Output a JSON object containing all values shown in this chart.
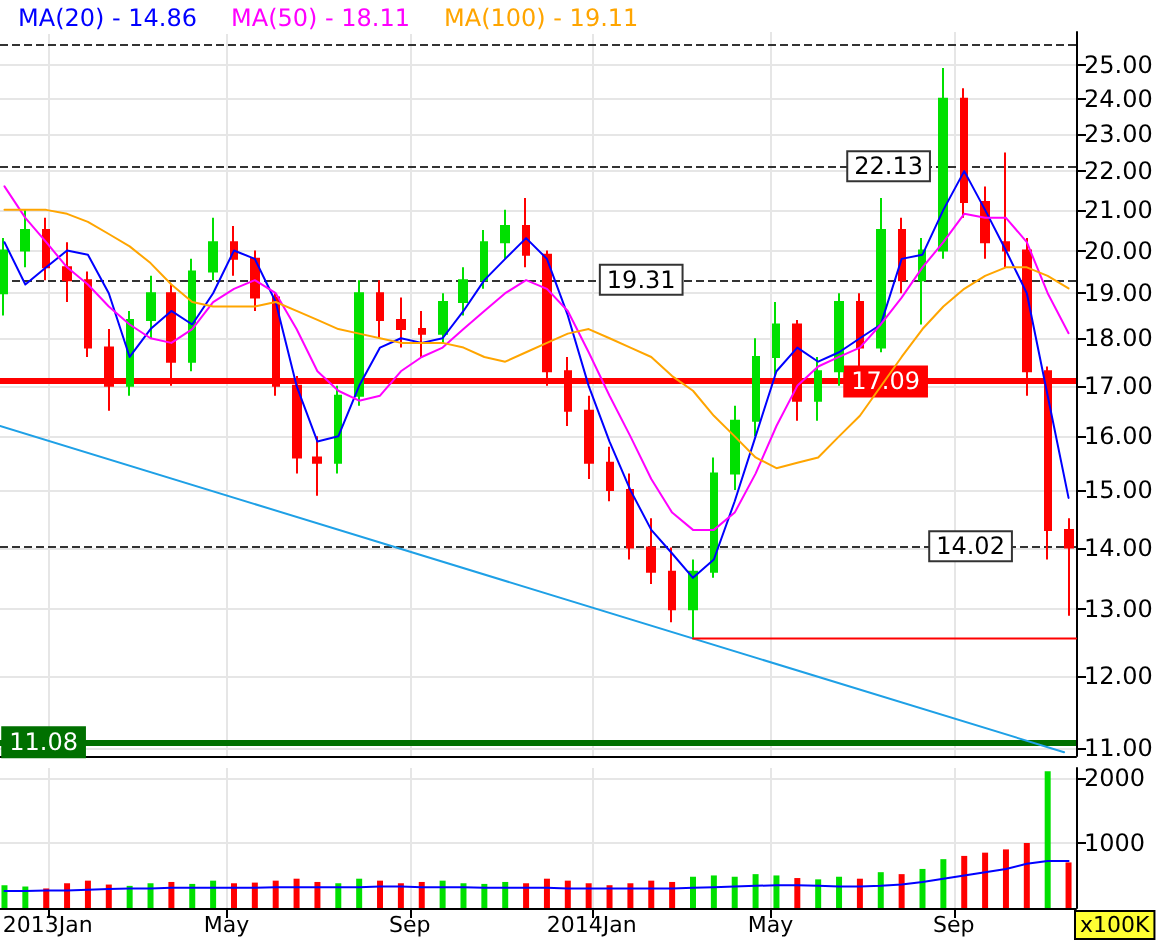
{
  "chart_data": [
    {
      "type": "candlestick",
      "log": true,
      "grid": true,
      "legend": "top left",
      "marker": "none",
      "tick_labels": "y",
      "x": [
        "2012-12-03",
        "2012-12-17",
        "2012-12-31",
        "2013-01-14",
        "2013-01-28",
        "2013-02-11",
        "2013-02-25",
        "2013-03-11",
        "2013-03-25",
        "2013-04-08",
        "2013-04-22",
        "2013-05-06",
        "2013-05-20",
        "2013-06-03",
        "2013-06-17",
        "2013-07-01",
        "2013-07-15",
        "2013-07-29",
        "2013-08-12",
        "2013-08-26",
        "2013-09-09",
        "2013-09-23",
        "2013-10-07",
        "2013-10-21",
        "2013-11-04",
        "2013-11-18",
        "2013-12-02",
        "2013-12-16",
        "2013-12-30",
        "2014-01-13",
        "2014-01-27",
        "2014-02-10",
        "2014-02-24",
        "2014-03-10",
        "2014-03-24",
        "2014-04-07",
        "2014-04-21",
        "2014-05-05",
        "2014-05-19",
        "2014-06-02",
        "2014-06-16",
        "2014-06-30",
        "2014-07-14",
        "2014-07-28",
        "2014-08-11",
        "2014-08-25",
        "2014-09-08",
        "2014-09-22",
        "2014-10-06",
        "2014-10-20",
        "2014-11-03",
        "2014-11-17"
      ],
      "ohlc": [
        [
          19.0,
          20.3,
          18.5,
          20.0
        ],
        [
          20.0,
          21.0,
          19.6,
          20.5
        ],
        [
          20.5,
          20.8,
          19.3,
          19.6
        ],
        [
          19.6,
          20.2,
          18.8,
          19.3
        ],
        [
          19.3,
          19.5,
          17.6,
          17.8
        ],
        [
          17.8,
          18.2,
          16.5,
          17.0
        ],
        [
          17.0,
          18.6,
          16.8,
          18.4
        ],
        [
          18.4,
          19.4,
          18.0,
          19.0
        ],
        [
          19.0,
          19.2,
          17.0,
          17.5
        ],
        [
          17.5,
          19.8,
          17.3,
          19.5
        ],
        [
          19.5,
          20.8,
          19.3,
          20.2
        ],
        [
          20.2,
          20.6,
          19.4,
          19.8
        ],
        [
          19.8,
          20.0,
          18.6,
          18.9
        ],
        [
          18.9,
          19.0,
          16.8,
          17.0
        ],
        [
          17.0,
          17.2,
          15.3,
          15.6
        ],
        [
          15.6,
          16.0,
          14.9,
          15.5
        ],
        [
          15.5,
          17.0,
          15.3,
          16.8
        ],
        [
          16.8,
          19.3,
          16.6,
          19.0
        ],
        [
          19.0,
          19.3,
          18.0,
          18.4
        ],
        [
          18.4,
          18.9,
          17.8,
          18.2
        ],
        [
          18.2,
          18.6,
          17.6,
          18.1
        ],
        [
          18.1,
          19.0,
          17.9,
          18.8
        ],
        [
          18.8,
          19.6,
          18.5,
          19.3
        ],
        [
          19.3,
          20.5,
          19.1,
          20.2
        ],
        [
          20.2,
          21.0,
          19.8,
          20.6
        ],
        [
          20.6,
          21.3,
          19.6,
          19.9
        ],
        [
          19.9,
          20.0,
          17.0,
          17.3
        ],
        [
          17.3,
          17.6,
          16.2,
          16.5
        ],
        [
          16.5,
          16.8,
          15.2,
          15.5
        ],
        [
          15.5,
          15.8,
          14.8,
          15.0
        ],
        [
          15.0,
          15.3,
          13.8,
          14.0
        ],
        [
          14.0,
          14.5,
          13.4,
          13.6
        ],
        [
          13.6,
          14.0,
          12.8,
          13.0
        ],
        [
          13.0,
          13.8,
          12.55,
          13.6
        ],
        [
          13.6,
          15.6,
          13.5,
          15.3
        ],
        [
          15.3,
          16.6,
          15.0,
          16.3
        ],
        [
          16.3,
          18.0,
          16.0,
          17.6
        ],
        [
          17.6,
          18.8,
          17.2,
          18.3
        ],
        [
          18.3,
          18.4,
          16.3,
          16.7
        ],
        [
          16.7,
          17.6,
          16.3,
          17.3
        ],
        [
          17.3,
          19.0,
          17.0,
          18.8
        ],
        [
          18.8,
          19.0,
          17.4,
          17.8
        ],
        [
          17.8,
          21.3,
          17.7,
          20.5
        ],
        [
          20.5,
          20.8,
          19.0,
          19.3
        ],
        [
          19.3,
          20.3,
          18.3,
          20.0
        ],
        [
          20.0,
          24.9,
          19.8,
          24.0
        ],
        [
          24.0,
          24.3,
          20.8,
          21.2
        ],
        [
          21.2,
          21.6,
          19.8,
          20.2
        ],
        [
          20.2,
          22.5,
          19.6,
          20.0
        ],
        [
          20.0,
          20.3,
          16.8,
          17.3
        ],
        [
          17.3,
          17.4,
          13.8,
          14.3
        ],
        [
          14.3,
          14.5,
          12.9,
          14.0
        ]
      ],
      "colors": [
        "#00e000",
        "#00e000",
        "#ff0000",
        "#ff0000",
        "#ff0000",
        "#ff0000",
        "#00e000",
        "#00e000",
        "#ff0000",
        "#00e000",
        "#00e000",
        "#ff0000",
        "#ff0000",
        "#ff0000",
        "#ff0000",
        "#ff0000",
        "#00e000",
        "#00e000",
        "#ff0000",
        "#ff0000",
        "#ff0000",
        "#00e000",
        "#00e000",
        "#00e000",
        "#00e000",
        "#ff0000",
        "#ff0000",
        "#ff0000",
        "#ff0000",
        "#ff0000",
        "#ff0000",
        "#ff0000",
        "#ff0000",
        "#00e000",
        "#00e000",
        "#00e000",
        "#00e000",
        "#00e000",
        "#ff0000",
        "#00e000",
        "#00e000",
        "#ff0000",
        "#00e000",
        "#ff0000",
        "#00e000",
        "#00e000",
        "#ff0000",
        "#ff0000",
        "#ff0000",
        "#ff0000",
        "#ff0000",
        "#ff0000"
      ],
      "series": [
        {
          "name": "MA(20) - 14.86",
          "type": "line",
          "color": "#0000ff",
          "values": [
            20.2,
            19.2,
            19.6,
            20.0,
            19.9,
            19.0,
            17.6,
            18.2,
            18.6,
            18.3,
            19.0,
            20.0,
            19.8,
            18.8,
            17.0,
            15.9,
            16.0,
            17.0,
            17.8,
            18.0,
            17.9,
            18.0,
            18.6,
            19.3,
            19.8,
            20.3,
            19.8,
            18.5,
            17.0,
            15.9,
            15.0,
            14.3,
            13.9,
            13.5,
            13.8,
            14.8,
            16.0,
            17.3,
            17.8,
            17.5,
            17.7,
            18.0,
            18.3,
            19.8,
            19.9,
            21.0,
            22.0,
            21.0,
            20.0,
            19.0,
            16.8,
            14.86
          ]
        },
        {
          "name": "MA(50) - 18.11",
          "type": "line",
          "color": "#ff00ff",
          "values": [
            21.6,
            20.8,
            20.2,
            19.6,
            19.2,
            18.7,
            18.3,
            18.0,
            17.9,
            18.2,
            18.8,
            19.1,
            19.3,
            19.0,
            18.2,
            17.3,
            16.9,
            16.7,
            16.8,
            17.3,
            17.6,
            17.8,
            18.2,
            18.6,
            19.0,
            19.3,
            19.1,
            18.6,
            17.7,
            16.8,
            16.0,
            15.2,
            14.6,
            14.3,
            14.3,
            14.6,
            15.3,
            16.2,
            17.0,
            17.4,
            17.6,
            17.8,
            18.3,
            18.9,
            19.6,
            20.2,
            20.9,
            20.8,
            20.8,
            20.2,
            19.0,
            18.11
          ]
        },
        {
          "name": "MA(100) - 19.11",
          "type": "line",
          "color": "#ffa500",
          "values": [
            21.0,
            21.0,
            21.0,
            20.9,
            20.7,
            20.4,
            20.1,
            19.7,
            19.2,
            18.8,
            18.7,
            18.7,
            18.7,
            18.8,
            18.6,
            18.4,
            18.2,
            18.1,
            18.0,
            17.9,
            17.9,
            17.9,
            17.8,
            17.6,
            17.5,
            17.7,
            17.9,
            18.1,
            18.2,
            18.0,
            17.8,
            17.6,
            17.2,
            16.9,
            16.4,
            16.0,
            15.6,
            15.4,
            15.5,
            15.6,
            16.0,
            16.4,
            null,
            17.6,
            18.2,
            18.7,
            19.1,
            19.4,
            19.6,
            19.6,
            19.4,
            19.11
          ]
        },
        {
          "type": "line",
          "color": "#1ea0e6",
          "x": [
            "2012-11-30",
            "2014-11-14"
          ],
          "values": [
            16.2,
            10.95
          ]
        },
        {
          "type": "line",
          "color": "#ff0000",
          "x": [
            "2014-03-10",
            "2014-11-22"
          ],
          "values": [
            12.55,
            12.55
          ]
        }
      ],
      "xlim": [
        "2012-11-30",
        "2014-11-22"
      ],
      "xticks": [
        {
          "value": "2013-01-01",
          "label": null
        },
        {
          "value": "2013-05-01",
          "label": null
        },
        {
          "value": "2013-09-01",
          "label": null
        },
        {
          "value": "2014-01-01",
          "label": null
        },
        {
          "value": "2014-05-01",
          "label": null
        },
        {
          "value": "2014-09-01",
          "label": null
        }
      ],
      "ylim": [
        10.9,
        26
      ],
      "yticks": [
        {
          "value": 11,
          "label": "11.00"
        },
        {
          "value": 12,
          "label": "12.00"
        },
        {
          "value": 13,
          "label": "13.00"
        },
        {
          "value": 14,
          "label": "14.00"
        },
        {
          "value": 15,
          "label": "15.00"
        },
        {
          "value": 16,
          "label": "16.00"
        },
        {
          "value": 17,
          "label": "17.00"
        },
        {
          "value": 18,
          "label": "18.00"
        },
        {
          "value": 19,
          "label": "19.00"
        },
        {
          "value": 20,
          "label": "20.00"
        },
        {
          "value": 21,
          "label": "21.00"
        },
        {
          "value": 22,
          "label": "22.00"
        },
        {
          "value": 23,
          "label": "23.00"
        },
        {
          "value": 24,
          "label": "24.00"
        },
        {
          "value": 25,
          "label": "25.00"
        }
      ],
      "ref_lines": [
        {
          "axis": "y",
          "value": 25.6,
          "color": "#333333",
          "line_style": "dashed"
        },
        {
          "axis": "y",
          "value": 22.13,
          "color": "#333333",
          "line_style": "dashed"
        },
        {
          "axis": "y",
          "value": 19.31,
          "color": "#333333",
          "line_style": "dashed"
        },
        {
          "axis": "y",
          "value": 17.09,
          "color": "#ff0000",
          "line_style": "solid"
        },
        {
          "axis": "y",
          "value": 14.02,
          "color": "#333333",
          "line_style": "dashed"
        },
        {
          "axis": "y",
          "value": 11.08,
          "color": "#007000",
          "line_style": "solid"
        }
      ],
      "annotations": [
        {
          "text": "22.13",
          "x": "2014-08-16",
          "y": 22.13
        },
        {
          "text": "19.31",
          "x": "2014-03-03",
          "y": 19.31
        },
        {
          "text": "17.09",
          "x": "2014-08-14",
          "y": 17.09
        },
        {
          "text": "14.02",
          "x": "2014-10-10",
          "y": 14.02
        },
        {
          "text": "11.08",
          "x": "2013-01-26",
          "y": 11.08
        }
      ]
    },
    {
      "type": "bar",
      "grid": true,
      "marker": "none",
      "ylabel": "x100K",
      "x": [
        "2012-12-03",
        "2012-12-17",
        "2012-12-31",
        "2013-01-14",
        "2013-01-28",
        "2013-02-11",
        "2013-02-25",
        "2013-03-11",
        "2013-03-25",
        "2013-04-08",
        "2013-04-22",
        "2013-05-06",
        "2013-05-20",
        "2013-06-03",
        "2013-06-17",
        "2013-07-01",
        "2013-07-15",
        "2013-07-29",
        "2013-08-12",
        "2013-08-26",
        "2013-09-09",
        "2013-09-23",
        "2013-10-07",
        "2013-10-21",
        "2013-11-04",
        "2013-11-18",
        "2013-12-02",
        "2013-12-16",
        "2013-12-30",
        "2014-01-13",
        "2014-01-27",
        "2014-02-10",
        "2014-02-24",
        "2014-03-10",
        "2014-03-24",
        "2014-04-07",
        "2014-04-21",
        "2014-05-05",
        "2014-05-19",
        "2014-06-02",
        "2014-06-16",
        "2014-06-30",
        "2014-07-14",
        "2014-07-28",
        "2014-08-11",
        "2014-08-25",
        "2014-09-08",
        "2014-09-22",
        "2014-10-06",
        "2014-10-20",
        "2014-11-03",
        "2014-11-17"
      ],
      "series": [
        {
          "type": "bar",
          "values": [
            350,
            330,
            300,
            380,
            420,
            360,
            340,
            380,
            400,
            370,
            420,
            380,
            390,
            420,
            450,
            400,
            380,
            450,
            420,
            380,
            400,
            420,
            380,
            370,
            400,
            380,
            450,
            420,
            380,
            350,
            380,
            420,
            400,
            480,
            500,
            480,
            520,
            500,
            460,
            440,
            480,
            450,
            550,
            520,
            600,
            750,
            800,
            850,
            900,
            1000,
            2100,
            700
          ],
          "colors": [
            "#00e000",
            "#00e000",
            "#ff0000",
            "#ff0000",
            "#ff0000",
            "#ff0000",
            "#00e000",
            "#00e000",
            "#ff0000",
            "#00e000",
            "#00e000",
            "#ff0000",
            "#ff0000",
            "#ff0000",
            "#ff0000",
            "#ff0000",
            "#00e000",
            "#00e000",
            "#ff0000",
            "#ff0000",
            "#ff0000",
            "#00e000",
            "#00e000",
            "#00e000",
            "#00e000",
            "#ff0000",
            "#ff0000",
            "#ff0000",
            "#ff0000",
            "#ff0000",
            "#ff0000",
            "#ff0000",
            "#ff0000",
            "#00e000",
            "#00e000",
            "#00e000",
            "#00e000",
            "#00e000",
            "#ff0000",
            "#00e000",
            "#00e000",
            "#ff0000",
            "#00e000",
            "#ff0000",
            "#00e000",
            "#00e000",
            "#ff0000",
            "#ff0000",
            "#ff0000",
            "#ff0000",
            "#00e000",
            "#ff0000"
          ]
        },
        {
          "type": "line",
          "color": "#0000ff",
          "values": [
            260,
            260,
            270,
            270,
            280,
            290,
            300,
            300,
            310,
            310,
            310,
            310,
            310,
            320,
            320,
            320,
            320,
            320,
            330,
            330,
            320,
            320,
            320,
            310,
            310,
            310,
            310,
            300,
            300,
            300,
            300,
            300,
            300,
            310,
            320,
            330,
            340,
            350,
            350,
            340,
            330,
            330,
            340,
            360,
            400,
            450,
            500,
            550,
            600,
            680,
            720,
            720
          ]
        }
      ],
      "xlim": [
        "2012-11-30",
        "2014-11-22"
      ],
      "xticks": [
        {
          "value": "2013-01-01",
          "label": "2013Jan"
        },
        {
          "value": "2013-05-01",
          "label": "May"
        },
        {
          "value": "2013-09-01",
          "label": "Sep"
        },
        {
          "value": "2014-01-01",
          "label": "2014Jan"
        },
        {
          "value": "2014-05-01",
          "label": "May"
        },
        {
          "value": "2014-09-01",
          "label": "Sep"
        }
      ],
      "ylim": [
        0,
        2150
      ],
      "yticks": [
        1000,
        2000
      ]
    }
  ]
}
